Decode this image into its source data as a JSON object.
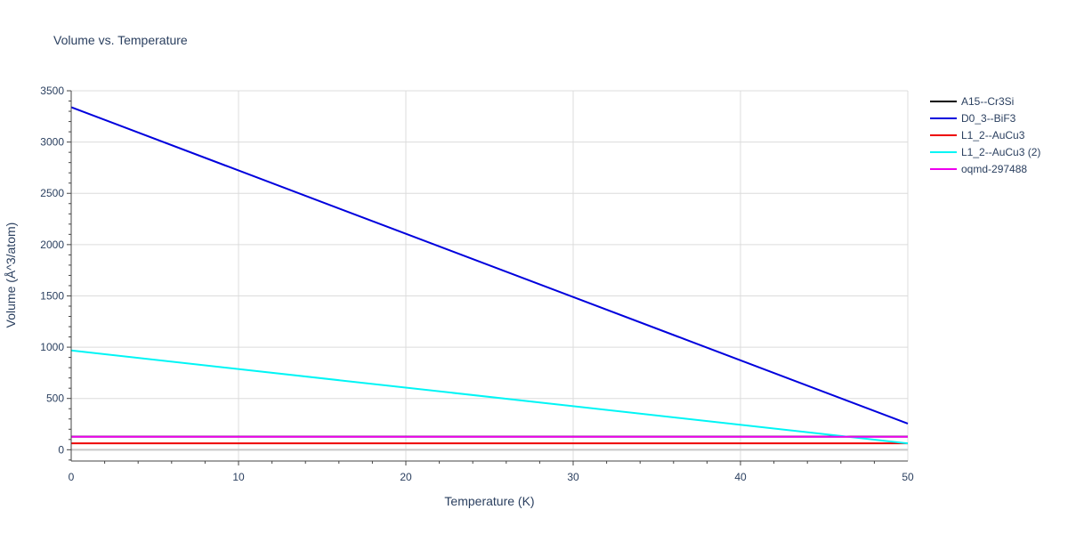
{
  "chart_data": {
    "type": "line",
    "title": "Volume vs. Temperature",
    "xlabel": "Temperature (K)",
    "ylabel": "Volume (Å^3/atom)",
    "xlim": [
      0,
      50
    ],
    "ylim": [
      -110,
      3500
    ],
    "x_ticks": [
      0,
      10,
      20,
      30,
      40,
      50
    ],
    "y_ticks": [
      0,
      500,
      1000,
      1500,
      2000,
      2500,
      3000,
      3500
    ],
    "grid": true,
    "legend_position": "top-right",
    "series": [
      {
        "name": "A15--Cr3Si",
        "color": "#000000",
        "x": [
          0,
          50
        ],
        "y": [
          128,
          128
        ]
      },
      {
        "name": "D0_3--BiF3",
        "color": "#0000dd",
        "x": [
          0,
          50
        ],
        "y": [
          3340,
          255
        ]
      },
      {
        "name": "L1_2--AuCu3",
        "color": "#ee0000",
        "x": [
          0,
          50
        ],
        "y": [
          62,
          62
        ]
      },
      {
        "name": "L1_2--AuCu3 (2)",
        "color": "#00f5f5",
        "x": [
          0,
          50
        ],
        "y": [
          968,
          62
        ]
      },
      {
        "name": "oqmd-297488",
        "color": "#ee00ee",
        "x": [
          0,
          50
        ],
        "y": [
          126,
          126
        ]
      }
    ]
  }
}
